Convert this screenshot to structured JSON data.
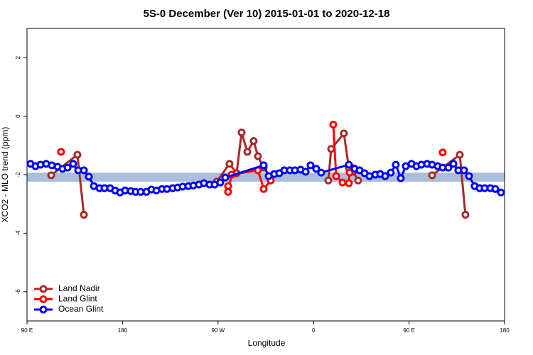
{
  "chart_data": {
    "type": "line",
    "title": "5S-0 December (Ver 10)   2015-01-01 to 2020-12-18",
    "xlabel": "Longitude",
    "ylabel": "XCO2 - MLO trend (ppm)",
    "xlim": [
      90,
      540
    ],
    "ylim": [
      -7,
      3
    ],
    "xticks": [
      {
        "value": 90,
        "label": "90 E"
      },
      180,
      {
        "value": 270,
        "label": "90 W"
      },
      {
        "value": 360,
        "label": "0"
      },
      {
        "value": 450,
        "label": "90 E"
      },
      {
        "value": 540,
        "label": "180"
      }
    ],
    "yticks": [
      -6,
      -4,
      -2,
      0,
      2
    ],
    "band": [
      -2.24,
      -1.93
    ],
    "band_color": "#a9bfdc",
    "legend": "bottom-left",
    "series": [
      {
        "name": "Land Nadir",
        "color": "#a52a2a",
        "x": [
          112.8,
          137.5,
          143.6,
          null,
          268.8,
          280.8,
          287.5,
          292.2,
          297.6,
          303.6,
          307.6,
          313.0,
          null,
          373.9,
          376.6,
          388.6,
          393.3,
          397.3,
          402.0,
          null,
          471.7,
          497.8,
          503.1
        ],
        "values": [
          -2.02,
          -1.32,
          -3.37,
          null,
          -2.24,
          -1.63,
          -1.95,
          -0.56,
          -1.22,
          -0.85,
          -1.37,
          -1.76,
          null,
          -2.2,
          -1.12,
          -0.59,
          -1.78,
          -1.9,
          -2.2,
          null,
          -2.02,
          -1.32,
          -3.37
        ]
      },
      {
        "name": "Land Glint",
        "color": "#ff0000",
        "x": [
          122.1,
          null,
          279.5,
          279.5,
          282.8,
          307.6,
          313.0,
          319.7,
          null,
          378.6,
          381.3,
          387.3,
          393.3,
          394.0,
          397.3,
          null,
          481.7
        ],
        "values": [
          -1.22,
          null,
          -2.39,
          -2.59,
          -2.0,
          -1.85,
          -2.49,
          -2.2,
          null,
          -0.29,
          -2.05,
          -2.27,
          -2.29,
          -1.93,
          -1.78,
          null,
          -1.24
        ]
      },
      {
        "name": "Ocean Glint",
        "color": "#0000ff",
        "x": [
          93.3,
          98.0,
          102.7,
          108.1,
          113.4,
          118.8,
          123.5,
          128.2,
          133.5,
          138.2,
          143.6,
          148.3,
          153.0,
          158.3,
          163.0,
          168.3,
          173.0,
          177.7,
          182.4,
          187.8,
          192.4,
          197.1,
          202.5,
          207.2,
          211.9,
          217.2,
          221.9,
          227.3,
          232.0,
          236.6,
          242.0,
          246.7,
          252.0,
          256.7,
          262.1,
          266.8,
          272.1,
          276.8,
          313.0,
          317.7,
          323.0,
          327.7,
          332.4,
          337.7,
          342.4,
          347.8,
          352.5,
          357.2,
          362.5,
          367.2,
          393.3,
          398.7,
          403.4,
          408.1,
          412.7,
          418.1,
          422.8,
          427.5,
          432.8,
          437.5,
          442.2,
          446.9,
          452.3,
          457.0,
          461.6,
          467.0,
          471.7,
          477.0,
          481.7,
          487.1,
          491.8,
          496.4,
          501.8,
          506.5,
          511.8,
          516.5,
          521.2,
          526.6,
          531.3,
          536.6
        ],
        "values": [
          -1.63,
          -1.71,
          -1.66,
          -1.63,
          -1.68,
          -1.73,
          -1.8,
          -1.76,
          -1.63,
          -1.85,
          -1.85,
          -2.07,
          -2.39,
          -2.46,
          -2.46,
          -2.46,
          -2.54,
          -2.61,
          -2.54,
          -2.56,
          -2.59,
          -2.59,
          -2.59,
          -2.51,
          -2.54,
          -2.49,
          -2.49,
          -2.46,
          -2.44,
          -2.41,
          -2.39,
          -2.37,
          -2.34,
          -2.29,
          -2.34,
          -2.34,
          -2.27,
          -2.1,
          -1.68,
          -2.05,
          -1.98,
          -1.95,
          -1.85,
          -1.85,
          -1.85,
          -1.83,
          -1.9,
          -1.68,
          -1.8,
          -1.93,
          -1.66,
          -1.8,
          -1.85,
          -1.95,
          -2.05,
          -2.0,
          -1.98,
          -2.05,
          -1.93,
          -1.66,
          -2.12,
          -1.71,
          -1.63,
          -1.71,
          -1.66,
          -1.63,
          -1.66,
          -1.71,
          -1.76,
          -1.76,
          -1.63,
          -1.85,
          -1.85,
          -2.05,
          -2.39,
          -2.46,
          -2.46,
          -2.46,
          -2.49,
          -2.61
        ]
      }
    ]
  }
}
